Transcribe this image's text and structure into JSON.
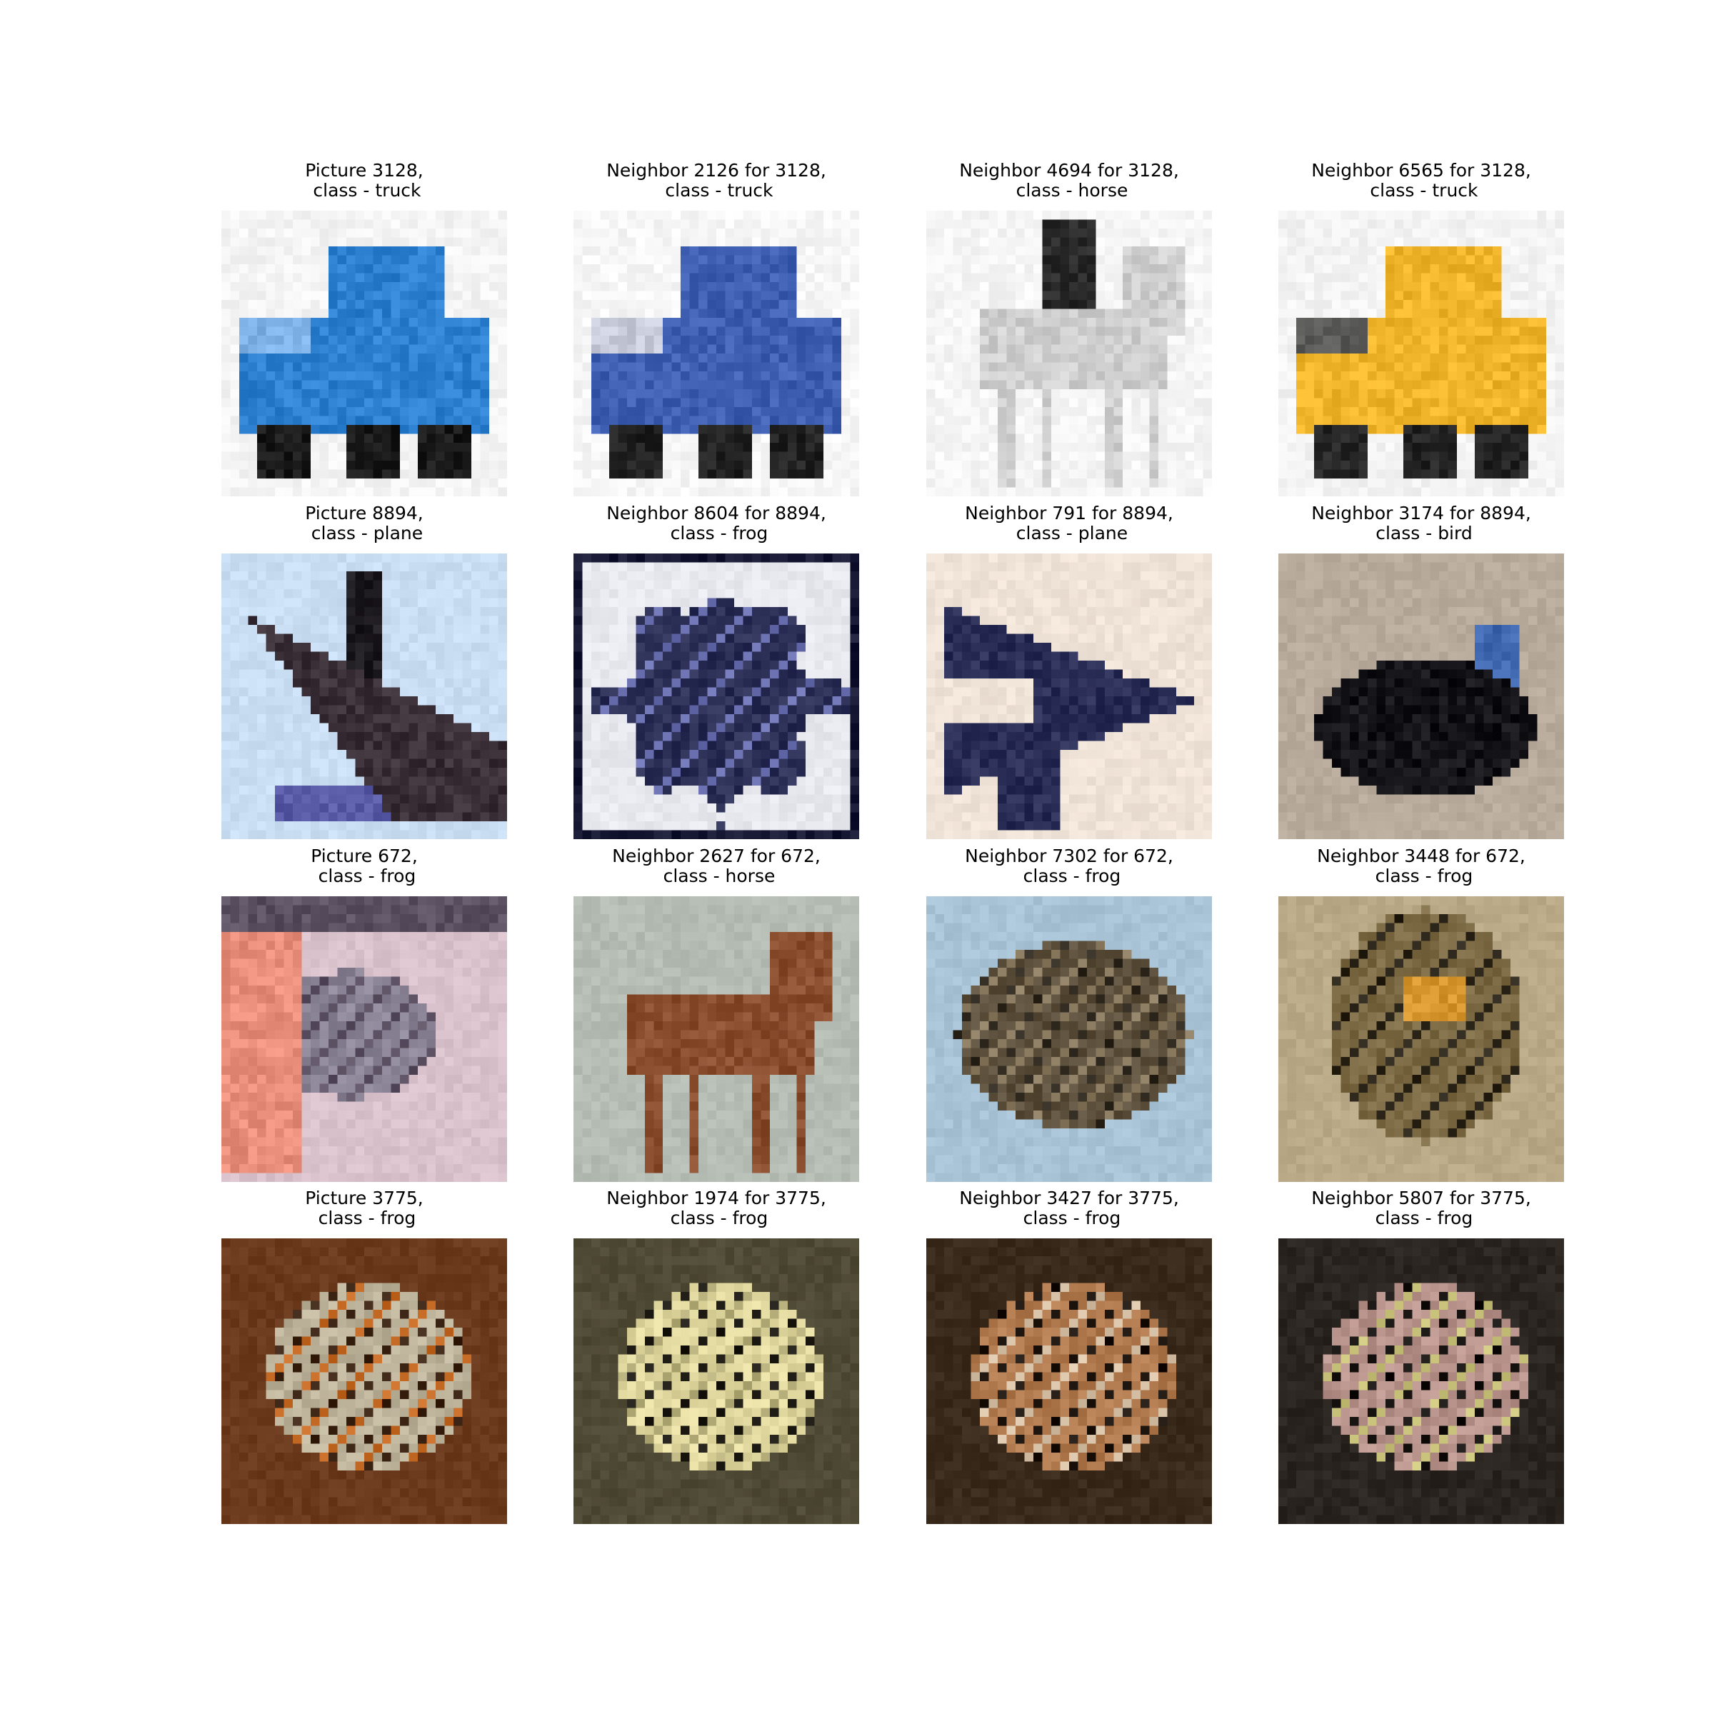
{
  "figure": {
    "cells": [
      {
        "title": "Picture 3128,\n class - truck",
        "subject": "truck",
        "palette": {
          "bg": "#f4f4f4",
          "main": "#2d7fd0",
          "dark": "#1a1a1a",
          "accent": "#7fb2e6"
        }
      },
      {
        "title": "Neighbor 2126 for 3128,\n class - truck",
        "subject": "truck",
        "palette": {
          "bg": "#f6f6f6",
          "main": "#3e5fb2",
          "dark": "#222222",
          "accent": "#c8cbd9"
        }
      },
      {
        "title": "Neighbor 4694 for 3128,\n class - horse",
        "subject": "horse",
        "palette": {
          "bg": "#f5f5f5",
          "main": "#cfcfcf",
          "dark": "#2a2a2a",
          "accent": "#8e8e8e"
        }
      },
      {
        "title": "Neighbor 6565 for 3128,\n class - truck",
        "subject": "truck",
        "palette": {
          "bg": "#f3f3f3",
          "main": "#f0b52a",
          "dark": "#252525",
          "accent": "#5a5a58"
        }
      },
      {
        "title": "Picture 8894,\n class - plane",
        "subject": "plane",
        "palette": {
          "bg": "#c9def2",
          "main": "#3a2f36",
          "dark": "#1d1a20",
          "accent": "#5a5ba6"
        }
      },
      {
        "title": "Neighbor 8604 for 8894,\n class - frog",
        "subject": "blob",
        "palette": {
          "bg": "#e8e9ee",
          "main": "#2b2f55",
          "dark": "#161833",
          "accent": "#6a70b0"
        }
      },
      {
        "title": "Neighbor 791 for 8894,\n class - plane",
        "subject": "plane2",
        "palette": {
          "bg": "#efe2d6",
          "main": "#2a2d55",
          "dark": "#151733",
          "accent": "#dcd2cb"
        }
      },
      {
        "title": "Neighbor 3174 for 8894,\n class - bird",
        "subject": "bird",
        "palette": {
          "bg": "#b9ab9c",
          "main": "#141418",
          "dark": "#0c0c10",
          "accent": "#3f67b0"
        }
      },
      {
        "title": "Picture 672,\n class - frog",
        "subject": "frog-hand",
        "palette": {
          "bg": "#d9c2cc",
          "main": "#8a8496",
          "dark": "#5a5061",
          "accent": "#e88e7a"
        }
      },
      {
        "title": "Neighbor 2627 for 672,\n class - horse",
        "subject": "horse2",
        "palette": {
          "bg": "#b5bcb4",
          "main": "#8a4e2f",
          "dark": "#3a4a32",
          "accent": "#6f6a5c"
        }
      },
      {
        "title": "Neighbor 7302 for 672,\n class - frog",
        "subject": "toad",
        "palette": {
          "bg": "#a8c3d6",
          "main": "#5c4f3c",
          "dark": "#2f281f",
          "accent": "#8a7a60"
        }
      },
      {
        "title": "Neighbor 3448 for 672,\n class - frog",
        "subject": "frog-sit",
        "palette": {
          "bg": "#b9a987",
          "main": "#7c6a45",
          "dark": "#2a2418",
          "accent": "#d8962f"
        }
      },
      {
        "title": "Picture 3775,\n class - frog",
        "subject": "frog",
        "palette": {
          "bg": "#6b3a1c",
          "main": "#bdb39a",
          "dark": "#3b2414",
          "accent": "#c56a24"
        }
      },
      {
        "title": "Neighbor 1974 for 3775,\n class - frog",
        "subject": "frog",
        "palette": {
          "bg": "#4f4a35",
          "main": "#e2d9a0",
          "dark": "#1c1a12",
          "accent": "#b3ac78"
        }
      },
      {
        "title": "Neighbor 3427 for 3775,\n class - frog",
        "subject": "frog",
        "palette": {
          "bg": "#3a2a1c",
          "main": "#b07a4e",
          "dark": "#1c140d",
          "accent": "#d7c2a8"
        }
      },
      {
        "title": "Neighbor 5807 for 3775,\n class - frog",
        "subject": "frog",
        "palette": {
          "bg": "#2a2520",
          "main": "#b8938b",
          "dark": "#15120f",
          "accent": "#c9c27a"
        }
      }
    ]
  }
}
